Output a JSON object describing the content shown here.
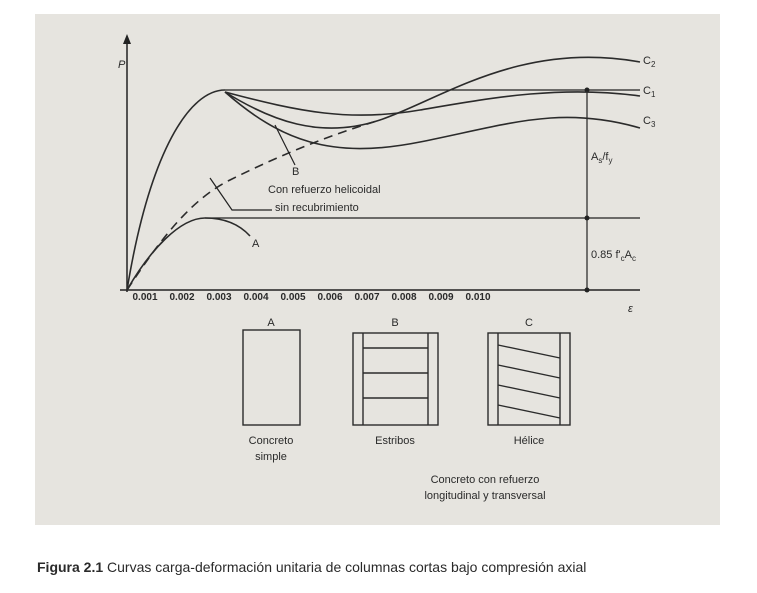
{
  "figure": {
    "axis": {
      "y_label": "P",
      "x_label": "ε",
      "ticks": [
        "0.001",
        "0.002",
        "0.003",
        "0.004",
        "0.005",
        "0.006",
        "0.007",
        "0.008",
        "0.009",
        "0.010"
      ]
    },
    "curves": {
      "c2": [
        "C",
        "2"
      ],
      "c1": [
        "C",
        "1"
      ],
      "c3": [
        "C",
        "3"
      ]
    },
    "annotations": {
      "steel": [
        "A",
        "s",
        "/f",
        "y"
      ],
      "concrete": [
        "0.85 f'",
        "c",
        "A",
        "c"
      ],
      "b": "B",
      "helical_1": "Con refuerzo helicoidal",
      "helical_2": "sin recubrimiento",
      "a": "A"
    },
    "columns": [
      {
        "letter": "A",
        "label": [
          "Concreto",
          "simple"
        ]
      },
      {
        "letter": "B",
        "label": [
          "Estribos"
        ]
      },
      {
        "letter": "C",
        "label": [
          "Hélice"
        ]
      }
    ],
    "group_label": [
      "Concreto con refuerzo",
      "longitudinal y transversal"
    ]
  },
  "caption": {
    "label": "Figura 2.1",
    "text": "Curvas carga-deformación unitaria de columnas cortas bajo compresión axial"
  }
}
